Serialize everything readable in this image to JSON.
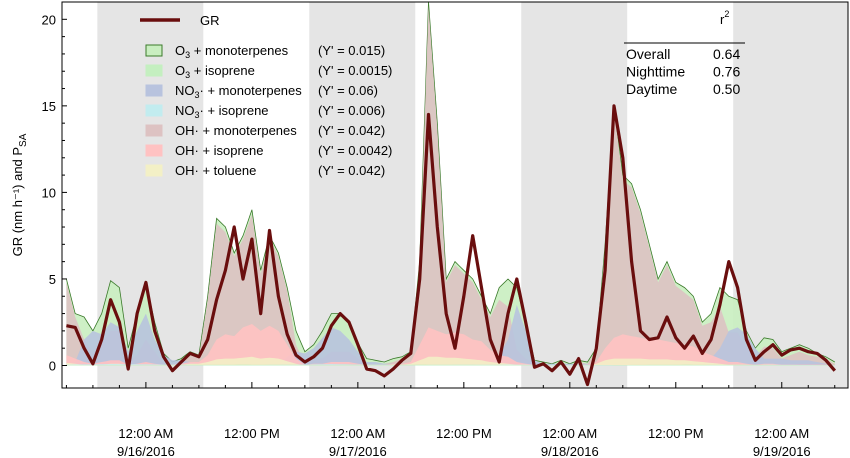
{
  "chart_data": {
    "type": "area",
    "ylabel": "GR (nm h⁻¹) and P",
    "ylabel_sub": "SA",
    "ylim": [
      -1.3,
      21
    ],
    "yticks": [
      "0",
      "5",
      "10",
      "15",
      "20"
    ],
    "xticks": [
      {
        "t": 9,
        "line1": "12:00 AM",
        "line2": "9/16/2016"
      },
      {
        "t": 21,
        "line1": "12:00 PM",
        "line2": ""
      },
      {
        "t": 33,
        "line1": "12:00 AM",
        "line2": "9/17/2016"
      },
      {
        "t": 45,
        "line1": "12:00 PM",
        "line2": ""
      },
      {
        "t": 57,
        "line1": "12:00 AM",
        "line2": "9/18/2016"
      },
      {
        "t": 69,
        "line1": "12:00 PM",
        "line2": ""
      },
      {
        "t": 81,
        "line1": "12:00 AM",
        "line2": "9/19/2016"
      }
    ],
    "xlim": [
      -0.5,
      88.5
    ],
    "x_unit": "hours from 9/15/2016 3:00 PM",
    "night_bands": [
      [
        3.5,
        15.5
      ],
      [
        27.5,
        39.5
      ],
      [
        51.5,
        63.5
      ],
      [
        75.5,
        88.5
      ]
    ],
    "legend": {
      "gr": "GR",
      "items": [
        {
          "label": "O₃ + monoterpenes",
          "y": "(Y' = 0.015)",
          "color": "#c9eec0",
          "border": "#3a7a2a"
        },
        {
          "label": "O₃ + isoprene",
          "y": "(Y' = 0.0015)",
          "color": "#c4efc0",
          "border": "#c4efc0"
        },
        {
          "label": "NO₃· + monoterpenes",
          "y": "(Y' = 0.06)",
          "color": "#b8c3de",
          "border": "#b8c3de"
        },
        {
          "label": "NO₃· + isoprene",
          "y": "(Y' = 0.006)",
          "color": "#c2ecef",
          "border": "#c2ecef"
        },
        {
          "label": "OH· + monoterpenes",
          "y": "(Y' = 0.042)",
          "color": "#ddc2c2",
          "border": "#ddc2c2"
        },
        {
          "label": "OH· + isoprene",
          "y": "(Y' = 0.0042)",
          "color": "#ffc2c2",
          "border": "#ffc2c2"
        },
        {
          "label": "OH· + toluene",
          "y": "(Y' = 0.042)",
          "color": "#f3f0c6",
          "border": "#f3f0c6"
        }
      ]
    },
    "r2_table": {
      "header": "r",
      "header_sup": "2",
      "rows": [
        {
          "label": "Overall",
          "value": "0.64"
        },
        {
          "label": "Nighttime",
          "value": "0.76"
        },
        {
          "label": "Daytime",
          "value": "0.50"
        }
      ]
    },
    "series": [
      {
        "name": "GR",
        "color": "#6a0e0e",
        "x": [
          0,
          1,
          2,
          3,
          4,
          5,
          6,
          7,
          8,
          9,
          10,
          11,
          12,
          13,
          14,
          15,
          16,
          17,
          18,
          19,
          20,
          21,
          22,
          23,
          24,
          25,
          26,
          27,
          28,
          29,
          30,
          31,
          32,
          33,
          34,
          35,
          36,
          37,
          38,
          39,
          40,
          41,
          42,
          43,
          44,
          45,
          46,
          47,
          48,
          49,
          50,
          51,
          52,
          53,
          54,
          55,
          56,
          57,
          58,
          59,
          60,
          61,
          62,
          63,
          64,
          65,
          66,
          67,
          68,
          69,
          70,
          71,
          72,
          73,
          74,
          75,
          76,
          77,
          78,
          79,
          80,
          81,
          82,
          83,
          84,
          85,
          86,
          87
        ],
        "y": [
          2.3,
          2.2,
          1.0,
          0.1,
          1.5,
          3.8,
          2.5,
          -0.2,
          3.0,
          4.8,
          2.0,
          0.5,
          -0.3,
          0.2,
          0.7,
          0.5,
          1.5,
          3.8,
          5.5,
          8.0,
          5.0,
          7.3,
          3.0,
          7.8,
          4.0,
          1.8,
          0.6,
          0.2,
          0.5,
          1.0,
          2.3,
          3.0,
          2.5,
          1.2,
          -0.2,
          -0.3,
          -0.6,
          -0.2,
          0.3,
          0.7,
          5.0,
          14.5,
          8.0,
          3.0,
          1.0,
          4.0,
          7.5,
          4.5,
          1.5,
          0.2,
          3.0,
          5.0,
          2.5,
          -0.1,
          0.1,
          -0.3,
          0.2,
          -0.5,
          0.4,
          -1.1,
          1.0,
          5.5,
          15.0,
          12.0,
          6.0,
          2.0,
          1.5,
          1.6,
          2.8,
          1.6,
          1.0,
          1.7,
          0.7,
          1.5,
          3.5,
          6.0,
          4.5,
          1.5,
          0.3,
          0.8,
          1.2,
          0.6,
          0.9,
          1.0,
          0.8,
          0.7,
          0.3,
          -0.3
        ]
      },
      {
        "name": "O₃ + monoterpenes",
        "x": [
          0,
          1,
          2,
          3,
          4,
          5,
          6,
          7,
          8,
          9,
          10,
          11,
          12,
          13,
          14,
          15,
          16,
          17,
          18,
          19,
          20,
          21,
          22,
          23,
          24,
          25,
          26,
          27,
          28,
          29,
          30,
          31,
          32,
          33,
          34,
          35,
          36,
          37,
          38,
          39,
          40,
          41,
          42,
          43,
          44,
          45,
          46,
          47,
          48,
          49,
          50,
          51,
          52,
          53,
          54,
          55,
          56,
          57,
          58,
          59,
          60,
          61,
          62,
          63,
          64,
          65,
          66,
          67,
          68,
          69,
          70,
          71,
          72,
          73,
          74,
          75,
          76,
          77,
          78,
          79,
          80,
          81,
          82,
          83,
          84,
          85,
          86,
          87
        ],
        "y": [
          5.0,
          3.0,
          2.8,
          2.0,
          3.0,
          4.9,
          4.5,
          1.0,
          3.0,
          4.8,
          2.5,
          0.7,
          0.2,
          0.4,
          0.8,
          0.6,
          4.0,
          8.5,
          8.0,
          6.5,
          7.5,
          9.0,
          5.5,
          7.5,
          6.5,
          4.5,
          2.0,
          0.8,
          1.2,
          2.0,
          3.0,
          3.0,
          2.4,
          1.3,
          0.4,
          0.3,
          0.2,
          0.4,
          0.5,
          0.8,
          6.0,
          21.0,
          14.0,
          5.0,
          6.0,
          5.5,
          5.0,
          4.0,
          3.0,
          4.5,
          5.0,
          4.5,
          2.5,
          0.3,
          0.2,
          0.1,
          0.3,
          0.1,
          0.3,
          0.2,
          1.0,
          7.0,
          15.0,
          11.0,
          10.5,
          9.0,
          7.0,
          5.0,
          6.0,
          4.8,
          4.5,
          4.0,
          2.5,
          3.0,
          4.5,
          4.0,
          3.8,
          2.0,
          1.0,
          1.6,
          1.5,
          0.8,
          1.0,
          1.2,
          1.0,
          0.7,
          0.5,
          0.2
        ]
      },
      {
        "name": "O₃ + isoprene",
        "x": [
          0,
          10,
          20,
          30,
          40,
          50,
          60,
          70,
          80,
          87
        ],
        "y": [
          0.03,
          0.03,
          0.05,
          0.03,
          0.05,
          0.03,
          0.02,
          0.05,
          0.03,
          0.02
        ]
      },
      {
        "name": "NO₃· + monoterpenes",
        "x": [
          0,
          1,
          2,
          3,
          4,
          5,
          6,
          7,
          8,
          9,
          10,
          11,
          12,
          13,
          14,
          15,
          16,
          24,
          25,
          26,
          27,
          28,
          29,
          30,
          31,
          32,
          33,
          34,
          35,
          36,
          37,
          38,
          39,
          40,
          48,
          49,
          50,
          51,
          52,
          53,
          54,
          55,
          56,
          57,
          58,
          59,
          60,
          61,
          62,
          63,
          64,
          72,
          73,
          74,
          75,
          76,
          77,
          78,
          79,
          80,
          81,
          82,
          83,
          84,
          85,
          86,
          87
        ],
        "y": [
          0.1,
          0.2,
          1.5,
          2.0,
          1.8,
          2.5,
          2.2,
          0.8,
          2.0,
          3.0,
          1.5,
          0.6,
          0.3,
          0.3,
          0.2,
          0.1,
          0.0,
          0.0,
          0.5,
          0.8,
          0.7,
          1.0,
          1.6,
          2.2,
          2.0,
          1.5,
          0.8,
          0.2,
          0.2,
          0.1,
          0.1,
          0.1,
          0.1,
          0.0,
          0.0,
          0.6,
          1.5,
          3.5,
          2.0,
          0.3,
          0.1,
          0.1,
          0.1,
          0.1,
          0.1,
          0.1,
          0.1,
          0.1,
          0.1,
          0.1,
          0.0,
          0.0,
          0.4,
          1.0,
          2.0,
          2.2,
          1.8,
          1.0,
          0.4,
          0.4,
          0.4,
          0.3,
          0.3,
          0.3,
          0.2,
          0.1,
          0.0
        ]
      },
      {
        "name": "NO₃· + isoprene",
        "x": [
          0,
          5,
          10,
          15,
          20,
          25,
          30,
          35,
          40,
          50,
          60,
          70,
          80,
          87
        ],
        "y": [
          0.05,
          0.08,
          0.06,
          0.03,
          0.02,
          0.04,
          0.08,
          0.04,
          0.03,
          0.05,
          0.03,
          0.02,
          0.04,
          0.02
        ]
      },
      {
        "name": "OH· + monoterpenes",
        "x": [
          0,
          1,
          2,
          3,
          4,
          5,
          6,
          7,
          8,
          9,
          10,
          11,
          12,
          13,
          14,
          15,
          16,
          17,
          18,
          19,
          20,
          21,
          22,
          23,
          24,
          25,
          26,
          27,
          28,
          29,
          30,
          31,
          32,
          33,
          34,
          35,
          36,
          37,
          38,
          39,
          40,
          41,
          42,
          43,
          44,
          45,
          46,
          47,
          48,
          49,
          50,
          51,
          52,
          53,
          54,
          55,
          56,
          57,
          58,
          59,
          60,
          61,
          62,
          63,
          64,
          65,
          66,
          67,
          68,
          69,
          70,
          71,
          72,
          73,
          74,
          75,
          76,
          77,
          78,
          79,
          80,
          81,
          82,
          83,
          84,
          85,
          86,
          87
        ],
        "y": [
          4.8,
          2.8,
          1.5,
          0.7,
          1.2,
          2.0,
          2.0,
          0.2,
          0.6,
          1.5,
          0.8,
          0.1,
          0.1,
          0.3,
          0.6,
          0.5,
          3.8,
          8.2,
          7.7,
          6.3,
          7.3,
          8.7,
          5.3,
          7.3,
          6.3,
          4.3,
          1.2,
          0.1,
          0.4,
          0.4,
          0.8,
          0.8,
          0.8,
          0.4,
          0.1,
          0.1,
          0.1,
          0.2,
          0.4,
          0.7,
          5.8,
          20.8,
          13.7,
          4.8,
          5.8,
          5.3,
          4.8,
          3.8,
          2.8,
          3.8,
          3.4,
          0.9,
          0.4,
          0.1,
          0.1,
          0.0,
          0.2,
          0.0,
          0.2,
          0.1,
          0.9,
          6.8,
          14.7,
          10.7,
          10.3,
          8.8,
          6.8,
          4.8,
          5.8,
          4.6,
          4.2,
          3.8,
          2.3,
          2.5,
          3.4,
          1.9,
          1.9,
          1.0,
          0.5,
          1.1,
          1.0,
          0.4,
          0.6,
          0.8,
          0.6,
          0.5,
          0.4,
          0.1
        ]
      },
      {
        "name": "OH· + isoprene",
        "x": [
          0,
          1,
          2,
          3,
          4,
          5,
          6,
          7,
          8,
          9,
          10,
          11,
          12,
          13,
          14,
          15,
          16,
          17,
          18,
          19,
          20,
          21,
          22,
          23,
          24,
          25,
          26,
          27,
          28,
          29,
          30,
          31,
          32,
          33,
          34,
          35,
          36,
          37,
          38,
          39,
          40,
          41,
          42,
          43,
          44,
          45,
          46,
          47,
          48,
          49,
          50,
          51,
          52,
          53,
          54,
          55,
          56,
          57,
          58,
          59,
          60,
          61,
          62,
          63,
          64,
          65,
          66,
          67,
          68,
          69,
          70,
          71,
          72,
          73,
          74,
          75,
          76,
          77,
          78,
          79,
          80,
          81,
          82,
          83,
          84,
          85,
          86,
          87
        ],
        "y": [
          0.6,
          0.4,
          0.2,
          0.1,
          0.2,
          0.3,
          0.3,
          0.05,
          0.1,
          0.2,
          0.1,
          0.05,
          0.05,
          0.1,
          0.2,
          0.2,
          0.6,
          1.5,
          1.8,
          1.7,
          2.2,
          2.4,
          2.0,
          2.3,
          2.0,
          1.2,
          0.4,
          0.05,
          0.1,
          0.1,
          0.2,
          0.2,
          0.2,
          0.1,
          0.05,
          0.05,
          0.05,
          0.1,
          0.1,
          0.2,
          1.2,
          2.2,
          2.0,
          1.8,
          1.9,
          1.8,
          1.5,
          1.4,
          0.9,
          0.6,
          0.5,
          0.2,
          0.1,
          0.05,
          0.05,
          0.0,
          0.05,
          0.0,
          0.05,
          0.05,
          0.2,
          1.0,
          1.6,
          1.8,
          1.7,
          1.6,
          1.5,
          1.5,
          1.4,
          1.3,
          1.2,
          1.1,
          0.8,
          0.6,
          0.4,
          0.2,
          0.2,
          0.1,
          0.05,
          0.1,
          0.1,
          0.05,
          0.05,
          0.05,
          0.05,
          0.05,
          0.05,
          0.0
        ]
      },
      {
        "name": "OH· + toluene",
        "x": [
          0,
          1,
          2,
          3,
          4,
          5,
          6,
          7,
          8,
          9,
          10,
          11,
          12,
          13,
          14,
          15,
          16,
          17,
          18,
          19,
          20,
          21,
          22,
          23,
          24,
          25,
          26,
          27,
          28,
          29,
          30,
          31,
          32,
          33,
          34,
          35,
          36,
          37,
          38,
          39,
          40,
          41,
          42,
          43,
          44,
          45,
          46,
          47,
          48,
          49,
          50,
          51,
          52,
          53,
          54,
          55,
          56,
          57,
          58,
          59,
          60,
          61,
          62,
          63,
          64,
          65,
          66,
          67,
          68,
          69,
          70,
          71,
          72,
          73,
          74,
          75,
          76,
          77,
          78,
          79,
          80,
          81,
          82,
          83,
          84,
          85,
          86,
          87
        ],
        "y": [
          0.15,
          0.1,
          0.05,
          0.05,
          0.05,
          0.1,
          0.1,
          0.0,
          0.05,
          0.05,
          0.05,
          0.0,
          0.0,
          0.05,
          0.1,
          0.1,
          0.2,
          0.35,
          0.4,
          0.4,
          0.45,
          0.5,
          0.4,
          0.45,
          0.4,
          0.25,
          0.1,
          0.0,
          0.05,
          0.05,
          0.05,
          0.05,
          0.05,
          0.05,
          0.0,
          0.0,
          0.0,
          0.05,
          0.05,
          0.1,
          0.3,
          0.5,
          0.5,
          0.45,
          0.45,
          0.4,
          0.35,
          0.3,
          0.2,
          0.15,
          0.1,
          0.05,
          0.05,
          0.0,
          0.0,
          0.0,
          0.0,
          0.0,
          0.0,
          0.0,
          0.1,
          0.3,
          0.4,
          0.4,
          0.4,
          0.4,
          0.35,
          0.35,
          0.35,
          0.3,
          0.3,
          0.25,
          0.2,
          0.15,
          0.1,
          0.05,
          0.05,
          0.05,
          0.0,
          0.05,
          0.05,
          0.0,
          0.0,
          0.0,
          0.0,
          0.0,
          0.0,
          0.0
        ]
      }
    ]
  }
}
